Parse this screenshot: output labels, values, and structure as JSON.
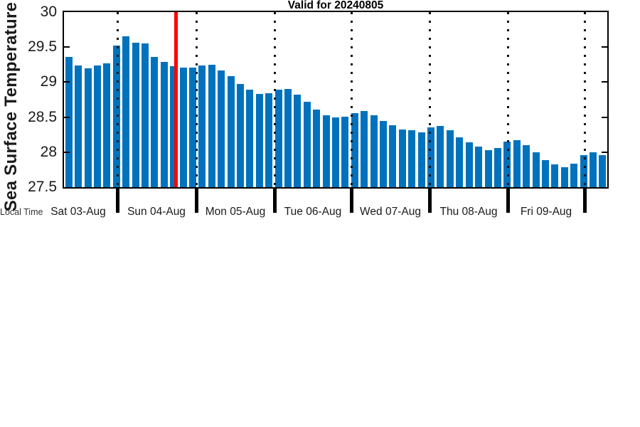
{
  "chart_data": {
    "type": "bar",
    "title": "Valid for 20240805",
    "ylabel": "Sea Surface Temperature",
    "xlabel": "Local Time",
    "ylim": [
      27.5,
      30
    ],
    "yticks": [
      30,
      29.5,
      29,
      28.5,
      28,
      27.5
    ],
    "yticks_display": [
      "30",
      "29.5",
      "29",
      "28.5",
      "28",
      "27.5"
    ],
    "x_day_labels": [
      "Sat 03-Aug",
      "Sun 04-Aug",
      "Mon 05-Aug",
      "Tue 06-Aug",
      "Wed 07-Aug",
      "Thu 08-Aug",
      "Fri 09-Aug"
    ],
    "values": [
      29.36,
      29.24,
      29.2,
      29.24,
      29.27,
      29.52,
      29.65,
      29.56,
      29.55,
      29.36,
      29.29,
      29.23,
      29.21,
      29.21,
      29.24,
      29.25,
      29.17,
      29.09,
      28.97,
      28.89,
      28.83,
      28.84,
      28.89,
      28.9,
      28.82,
      28.72,
      28.61,
      28.53,
      28.5,
      28.51,
      28.56,
      28.59,
      28.53,
      28.45,
      28.38,
      28.32,
      28.31,
      28.28,
      28.35,
      28.37,
      28.31,
      28.21,
      28.14,
      28.08,
      28.03,
      28.06,
      28.15,
      28.17,
      28.1,
      28.0,
      27.89,
      27.83,
      27.78,
      27.84,
      27.96,
      28.0,
      27.96
    ],
    "bar_color": "#0072bd",
    "grid": "vertical dotted black lines at each day boundary",
    "legend": "none",
    "current_time_marker": {
      "color": "#ff0000",
      "position_fraction": 0.206
    }
  }
}
